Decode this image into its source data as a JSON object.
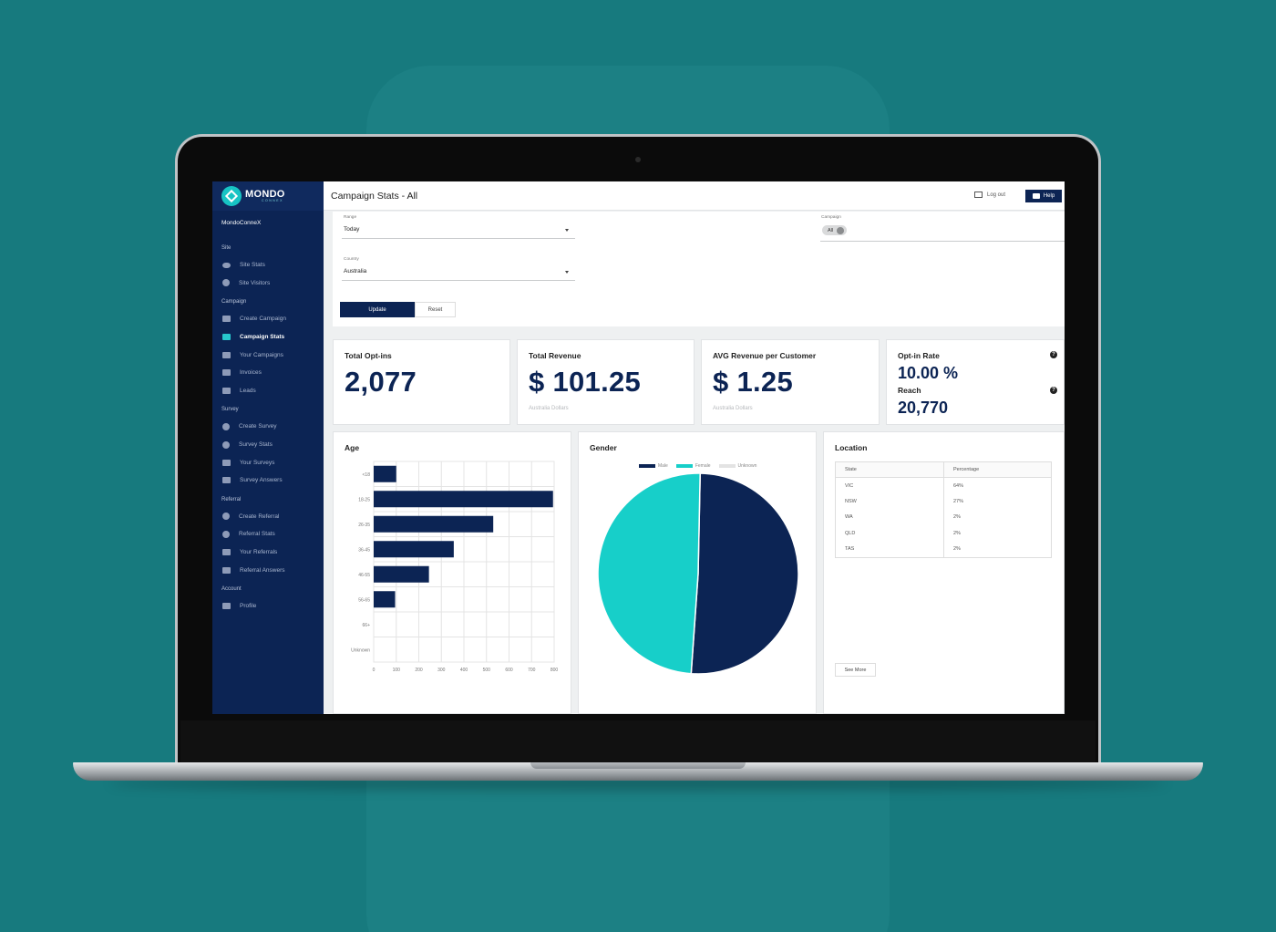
{
  "brand": {
    "name": "MONDO",
    "sub": "CONNEX"
  },
  "header": {
    "title": "Campaign Stats - All",
    "logout_label": "Log out",
    "help_label": "Help"
  },
  "sidebar": {
    "org": "MondoConneX",
    "sections": [
      {
        "title": "Site",
        "items": [
          {
            "label": "Site Stats",
            "icon": "eye-icon"
          },
          {
            "label": "Site Visitors",
            "icon": "person-icon"
          }
        ]
      },
      {
        "title": "Campaign",
        "items": [
          {
            "label": "Create Campaign",
            "icon": "folder-plus-icon"
          },
          {
            "label": "Campaign Stats",
            "icon": "chart-icon",
            "active": true
          },
          {
            "label": "Your Campaigns",
            "icon": "folder-icon"
          },
          {
            "label": "Invoices",
            "icon": "card-icon"
          },
          {
            "label": "Leads",
            "icon": "folder-icon"
          }
        ]
      },
      {
        "title": "Survey",
        "items": [
          {
            "label": "Create Survey",
            "icon": "plus-circle-icon"
          },
          {
            "label": "Survey Stats",
            "icon": "pie-icon"
          },
          {
            "label": "Your Surveys",
            "icon": "clipboard-icon"
          },
          {
            "label": "Survey Answers",
            "icon": "folder-icon"
          }
        ]
      },
      {
        "title": "Referral",
        "items": [
          {
            "label": "Create Referral",
            "icon": "plus-circle-icon"
          },
          {
            "label": "Referral Stats",
            "icon": "pie-icon"
          },
          {
            "label": "Your Referrals",
            "icon": "clipboard-icon"
          },
          {
            "label": "Referral Answers",
            "icon": "folder-icon"
          }
        ]
      },
      {
        "title": "Account",
        "items": [
          {
            "label": "Profile",
            "icon": "profile-icon"
          }
        ]
      }
    ]
  },
  "filters": {
    "range_label": "Range",
    "range_value": "Today",
    "country_label": "Country",
    "country_value": "Australia",
    "campaign_label": "Campaign",
    "campaign_chip": "All",
    "update_label": "Update",
    "reset_label": "Reset"
  },
  "stats": {
    "optins": {
      "title": "Total Opt-ins",
      "value": "2,077"
    },
    "revenue": {
      "title": "Total Revenue",
      "value": "$ 101.25",
      "sub": "Australia Dollars"
    },
    "avg": {
      "title": "AVG Revenue per Customer",
      "value": "$ 1.25",
      "sub": "Australia Dollars"
    },
    "optin_rate": {
      "title": "Opt-in Rate",
      "value": "10.00 %",
      "reach_title": "Reach",
      "reach_value": "20,770"
    }
  },
  "panels": {
    "age_title": "Age",
    "gender_title": "Gender",
    "location_title": "Location",
    "see_more": "See More"
  },
  "location": {
    "headers": [
      "State",
      "Percentage"
    ],
    "rows": [
      [
        "VIC",
        "64%"
      ],
      [
        "NSW",
        "27%"
      ],
      [
        "WA",
        "2%"
      ],
      [
        "QLD",
        "2%"
      ],
      [
        "TAS",
        "2%"
      ]
    ]
  },
  "colors": {
    "navy": "#0c2454",
    "teal": "#17cfc9",
    "unknown": "#e3e3e3"
  },
  "chart_data": [
    {
      "type": "bar",
      "orientation": "horizontal",
      "title": "Age",
      "categories": [
        "<18",
        "18-25",
        "26-35",
        "36-45",
        "46-55",
        "56-65",
        "66+",
        "Unknown"
      ],
      "values": [
        100,
        795,
        530,
        355,
        245,
        95,
        0,
        0
      ],
      "xlim": [
        0,
        800
      ],
      "xticks": [
        0,
        100,
        200,
        300,
        400,
        500,
        600,
        700,
        800
      ],
      "grid": true
    },
    {
      "type": "pie",
      "title": "Gender",
      "legend_position": "top",
      "series": [
        {
          "name": "Male",
          "value": 50.8,
          "color": "#0c2454"
        },
        {
          "name": "Female",
          "value": 49.2,
          "color": "#17cfc9"
        },
        {
          "name": "Unknown",
          "value": 0,
          "color": "#e3e3e3"
        }
      ]
    }
  ]
}
